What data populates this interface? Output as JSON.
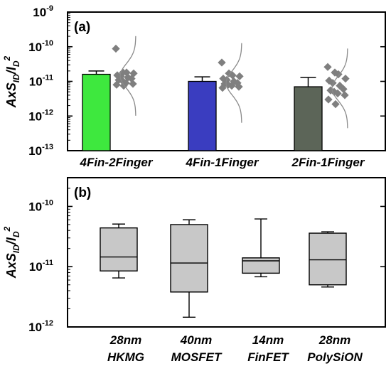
{
  "chart_data": [
    {
      "type": "bar",
      "panel_label": "(a)",
      "ylabel": {
        "main": "AxS",
        "sub": "ID",
        "sep": "/",
        "denom_main": "I",
        "denom_sub": "D",
        "denom_sup": "2"
      },
      "yscale": "log",
      "ylim": [
        1e-13,
        1e-09
      ],
      "yticks": [
        {
          "base": "10",
          "exp": "-9",
          "value": 1e-09
        },
        {
          "base": "10",
          "exp": "-10",
          "value": 1e-10
        },
        {
          "base": "10",
          "exp": "-11",
          "value": 1e-11
        },
        {
          "base": "10",
          "exp": "-12",
          "value": 1e-12
        },
        {
          "base": "10",
          "exp": "-13",
          "value": 1e-13
        }
      ],
      "categories": [
        "4Fin-2Finger",
        "4Fin-1Finger",
        "2Fin-1Finger"
      ],
      "values": [
        1.6e-11,
        1e-11,
        7e-12
      ],
      "error_upper": [
        2e-11,
        1.35e-11,
        1.3e-11
      ],
      "colors": [
        "#3ee83e",
        "#3a3dc0",
        "#5c6558"
      ],
      "scatter": [
        [
          8.8e-11,
          1.8e-11,
          1.8e-11,
          1.7e-11,
          1.5e-11,
          1.4e-11,
          1.3e-11,
          1.2e-11,
          1.1e-11,
          1.05e-11,
          9e-12,
          8.5e-12,
          8e-12,
          7.5e-12
        ],
        [
          3.5e-11,
          1.7e-11,
          1.5e-11,
          1.4e-11,
          1.2e-11,
          1.1e-11,
          1e-11,
          9e-12,
          8.5e-12,
          8e-12,
          7.5e-12,
          7e-12,
          6.5e-12
        ],
        [
          2.6e-11,
          1.8e-11,
          1.6e-11,
          1.2e-11,
          1.05e-11,
          9e-12,
          7.5e-12,
          6e-12,
          5.5e-12,
          5e-12,
          4.5e-12,
          4e-12,
          3e-12,
          2.2e-12
        ]
      ],
      "scatter_color": "#7f7f7f",
      "grid": false
    },
    {
      "type": "box",
      "panel_label": "(b)",
      "ylabel": {
        "main": "AxS",
        "sub": "ID",
        "sep": "/",
        "denom_main": "I",
        "denom_sub": "D",
        "denom_sup": "2"
      },
      "yscale": "log",
      "ylim": [
        1e-12,
        3e-10
      ],
      "yticks": [
        {
          "base": "10",
          "exp": "-10",
          "value": 1e-10
        },
        {
          "base": "10",
          "exp": "-11",
          "value": 1e-11
        },
        {
          "base": "10",
          "exp": "-12",
          "value": 1e-12
        }
      ],
      "categories": [
        {
          "line1": "28nm",
          "line2": "HKMG"
        },
        {
          "line1": "40nm",
          "line2": "MOSFET"
        },
        {
          "line1": "14nm",
          "line2": "FinFET"
        },
        {
          "line1": "28nm",
          "line2": "PolySiON"
        }
      ],
      "boxes": [
        {
          "min": 6.5e-12,
          "q1": 8.5e-12,
          "median": 1.45e-11,
          "q3": 4.4e-11,
          "max": 5.1e-11
        },
        {
          "min": 1.45e-12,
          "q1": 3.8e-12,
          "median": 1.15e-11,
          "q3": 5e-11,
          "max": 6e-11
        },
        {
          "min": 6.8e-12,
          "q1": 7.8e-12,
          "median": 1.25e-11,
          "q3": 1.4e-11,
          "max": 6.2e-11
        },
        {
          "min": 4.6e-12,
          "q1": 5e-12,
          "median": 1.3e-11,
          "q3": 3.6e-11,
          "max": 3.8e-11
        }
      ],
      "box_color": "#c8c8c8",
      "grid": false
    }
  ]
}
